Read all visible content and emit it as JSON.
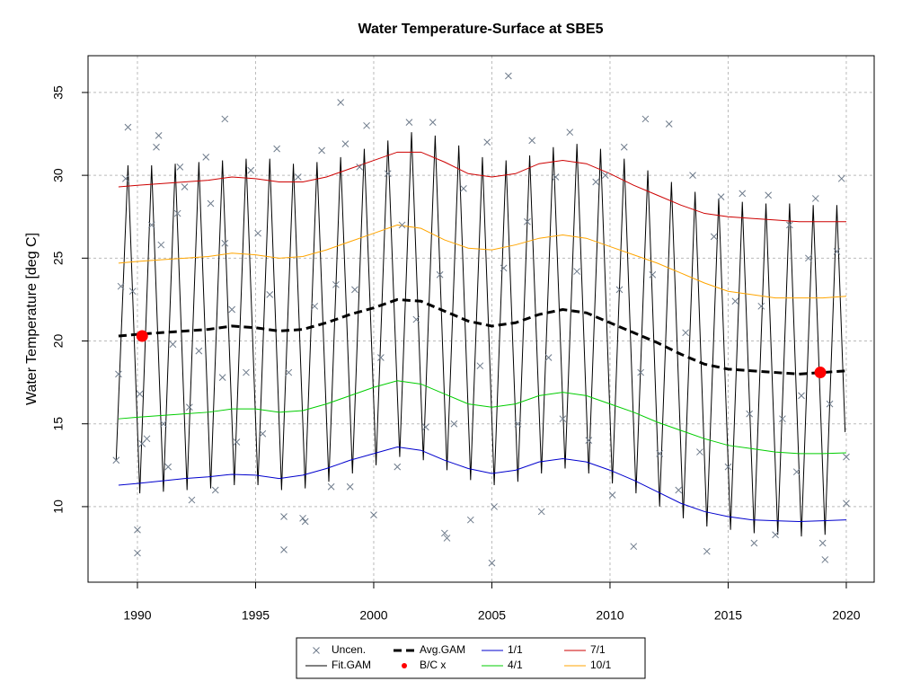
{
  "chart_data": {
    "type": "line",
    "title": "Water Temperature-Surface at SBE5",
    "ylabel": "Water Temperature [deg C]",
    "xlim": [
      1987.91,
      2021.18
    ],
    "ylim": [
      5.44,
      37.22
    ],
    "xticks": [
      1990,
      1995,
      2000,
      2005,
      2010,
      2015,
      2020
    ],
    "yticks": [
      10,
      15,
      20,
      25,
      30,
      35
    ],
    "grid": true,
    "legend": "bottom",
    "x": [
      1989.2,
      1990,
      1991,
      1992,
      1993,
      1994,
      1995,
      1996,
      1997,
      1998,
      1999,
      2000,
      2001,
      2002,
      2003,
      2004,
      2005,
      2006,
      2007,
      2008,
      2009,
      2010,
      2011,
      2012,
      2013,
      2014,
      2015,
      2016,
      2017,
      2018,
      2019,
      2020
    ],
    "series": [
      {
        "name": "Uncen.",
        "kind": "points",
        "marker": "x",
        "color": "#6e7b8b",
        "x": [
          1989.1,
          1989.2,
          1989.3,
          1989.5,
          1989.6,
          1989.8,
          1990.0,
          1990.0,
          1990.1,
          1990.2,
          1990.4,
          1990.6,
          1990.8,
          1990.9,
          1991.0,
          1991.1,
          1991.3,
          1991.5,
          1991.7,
          1991.8,
          1992.0,
          1992.2,
          1992.3,
          1992.6,
          1992.9,
          1993.1,
          1993.3,
          1993.6,
          1993.7,
          1993.7,
          1994.0,
          1994.2,
          1994.6,
          1994.8,
          1995.1,
          1995.3,
          1995.6,
          1995.9,
          1996.2,
          1996.2,
          1996.4,
          1996.8,
          1997.0,
          1997.1,
          1997.5,
          1997.8,
          1998.2,
          1998.4,
          1998.6,
          1998.8,
          1999.0,
          1999.2,
          1999.4,
          1999.7,
          2000.0,
          2000.3,
          2000.6,
          2001.0,
          2001.2,
          2001.5,
          2001.8,
          2002.2,
          2002.5,
          2002.8,
          2003.0,
          2003.1,
          2003.4,
          2003.8,
          2004.1,
          2004.5,
          2004.8,
          2005.0,
          2005.1,
          2005.5,
          2005.7,
          2006.1,
          2006.5,
          2006.7,
          2007.1,
          2007.4,
          2007.7,
          2008.0,
          2008.3,
          2008.6,
          2009.1,
          2009.4,
          2009.8,
          2010.1,
          2010.4,
          2010.6,
          2011.0,
          2011.3,
          2011.5,
          2011.8,
          2012.1,
          2012.5,
          2012.9,
          2013.2,
          2013.5,
          2013.8,
          2014.1,
          2014.4,
          2014.7,
          2015.0,
          2015.3,
          2015.6,
          2015.9,
          2016.1,
          2016.4,
          2016.7,
          2017.0,
          2017.3,
          2017.6,
          2017.9,
          2018.1,
          2018.4,
          2018.7,
          2019.0,
          2019.1,
          2019.3,
          2019.6,
          2019.8,
          2020.0,
          2020.0
        ],
        "values": [
          12.8,
          18.0,
          23.3,
          29.8,
          32.9,
          23.0,
          7.2,
          8.6,
          16.8,
          13.8,
          14.1,
          27.0,
          31.7,
          32.4,
          25.8,
          15.0,
          12.4,
          19.8,
          27.7,
          30.5,
          29.3,
          16.0,
          10.4,
          19.4,
          31.1,
          28.3,
          11.0,
          17.8,
          25.9,
          33.4,
          21.9,
          13.9,
          18.1,
          30.3,
          26.5,
          14.4,
          22.8,
          31.6,
          9.4,
          7.4,
          18.1,
          29.9,
          9.3,
          9.1,
          22.1,
          31.5,
          11.2,
          23.4,
          34.4,
          31.9,
          11.2,
          23.1,
          30.5,
          33.0,
          9.5,
          19.0,
          30.1,
          12.4,
          27.0,
          33.2,
          21.3,
          14.8,
          33.2,
          24.0,
          8.4,
          8.1,
          15.0,
          29.2,
          9.2,
          18.5,
          32.0,
          6.6,
          10.0,
          24.4,
          36.0,
          15.0,
          27.2,
          32.1,
          9.7,
          19.0,
          29.9,
          15.3,
          32.6,
          24.2,
          14.0,
          29.6,
          30.0,
          10.7,
          23.1,
          31.7,
          7.6,
          18.1,
          33.4,
          24.0,
          13.2,
          33.1,
          11.0,
          20.5,
          30.0,
          13.3,
          7.3,
          26.3,
          28.7,
          12.4,
          22.4,
          28.9,
          15.6,
          7.8,
          22.1,
          28.8,
          8.3,
          15.3,
          27.0,
          12.1,
          16.7,
          25.0,
          28.6,
          7.8,
          6.8,
          16.2,
          25.4,
          29.8,
          13.0,
          10.2
        ]
      },
      {
        "name": "Fit.GAM",
        "kind": "line",
        "color": "#000000",
        "x": [
          1989.1,
          1989.6,
          1990.1,
          1990.6,
          1991.1,
          1991.6,
          1992.1,
          1992.6,
          1993.1,
          1993.6,
          1994.1,
          1994.6,
          1995.1,
          1995.6,
          1996.1,
          1996.6,
          1997.1,
          1997.6,
          1998.1,
          1998.6,
          1999.1,
          1999.6,
          2000.1,
          2000.6,
          2001.1,
          2001.6,
          2002.1,
          2002.6,
          2003.1,
          2003.6,
          2004.1,
          2004.6,
          2005.1,
          2005.6,
          2006.1,
          2006.6,
          2007.1,
          2007.6,
          2008.1,
          2008.6,
          2009.1,
          2009.6,
          2010.1,
          2010.6,
          2011.1,
          2011.6,
          2012.1,
          2012.6,
          2013.1,
          2013.6,
          2014.1,
          2014.6,
          2015.1,
          2015.6,
          2016.1,
          2016.6,
          2017.1,
          2017.6,
          2018.1,
          2018.6,
          2019.1,
          2019.6,
          2019.95
        ],
        "values": [
          12.8,
          30.6,
          10.8,
          30.6,
          10.9,
          30.7,
          11.0,
          30.8,
          11.1,
          30.9,
          11.3,
          31.0,
          11.3,
          31.0,
          11.0,
          30.7,
          11.1,
          30.8,
          11.5,
          31.1,
          12.0,
          31.6,
          12.5,
          32.1,
          13.0,
          32.6,
          12.8,
          32.4,
          12.2,
          31.8,
          11.6,
          31.1,
          11.3,
          30.9,
          11.5,
          31.2,
          12.0,
          31.7,
          12.3,
          31.9,
          12.0,
          31.6,
          11.4,
          31.0,
          10.8,
          30.3,
          10.0,
          29.6,
          9.3,
          29.0,
          8.8,
          28.6,
          8.6,
          28.4,
          8.4,
          28.3,
          8.3,
          28.3,
          8.2,
          28.2,
          8.3,
          28.2,
          14.5
        ]
      },
      {
        "name": "Avg.GAM",
        "kind": "line",
        "dash": true,
        "color": "#000000",
        "values": [
          20.3,
          20.4,
          20.5,
          20.6,
          20.7,
          20.9,
          20.8,
          20.6,
          20.7,
          21.1,
          21.6,
          22.0,
          22.5,
          22.4,
          21.8,
          21.2,
          20.9,
          21.1,
          21.6,
          21.9,
          21.7,
          21.1,
          20.5,
          19.9,
          19.2,
          18.6,
          18.3,
          18.2,
          18.1,
          18.0,
          18.1,
          18.2
        ]
      },
      {
        "name": "B/C x",
        "kind": "points",
        "marker": "dot",
        "color": "#ff0000",
        "x": [
          1990.2,
          2018.9
        ],
        "values": [
          20.3,
          18.1
        ]
      },
      {
        "name": "1/1",
        "kind": "line",
        "color": "#0000cd",
        "values": [
          11.3,
          11.4,
          11.55,
          11.7,
          11.8,
          11.95,
          11.9,
          11.7,
          11.9,
          12.3,
          12.8,
          13.2,
          13.6,
          13.4,
          12.8,
          12.3,
          12.0,
          12.2,
          12.7,
          12.9,
          12.7,
          12.2,
          11.6,
          10.9,
          10.2,
          9.7,
          9.4,
          9.2,
          9.15,
          9.1,
          9.15,
          9.2
        ]
      },
      {
        "name": "4/1",
        "kind": "line",
        "color": "#00cd00",
        "values": [
          15.3,
          15.4,
          15.5,
          15.6,
          15.7,
          15.9,
          15.9,
          15.7,
          15.8,
          16.2,
          16.7,
          17.2,
          17.6,
          17.4,
          16.8,
          16.2,
          16.0,
          16.2,
          16.7,
          16.9,
          16.7,
          16.2,
          15.7,
          15.1,
          14.6,
          14.1,
          13.7,
          13.5,
          13.3,
          13.2,
          13.2,
          13.25
        ]
      },
      {
        "name": "7/1",
        "kind": "line",
        "color": "#cd0000",
        "values": [
          29.3,
          29.4,
          29.5,
          29.6,
          29.7,
          29.9,
          29.8,
          29.6,
          29.6,
          29.9,
          30.4,
          30.9,
          31.4,
          31.4,
          30.8,
          30.1,
          29.9,
          30.1,
          30.7,
          30.9,
          30.7,
          30.1,
          29.4,
          28.8,
          28.2,
          27.7,
          27.5,
          27.4,
          27.3,
          27.2,
          27.2,
          27.2
        ]
      },
      {
        "name": "10/1",
        "kind": "line",
        "color": "#ffa500",
        "values": [
          24.7,
          24.8,
          24.9,
          25.0,
          25.1,
          25.3,
          25.2,
          25.0,
          25.1,
          25.5,
          26.0,
          26.5,
          27.0,
          26.8,
          26.1,
          25.6,
          25.5,
          25.8,
          26.2,
          26.4,
          26.2,
          25.7,
          25.2,
          24.7,
          24.1,
          23.5,
          23.0,
          22.8,
          22.6,
          22.6,
          22.6,
          22.7
        ]
      }
    ]
  }
}
